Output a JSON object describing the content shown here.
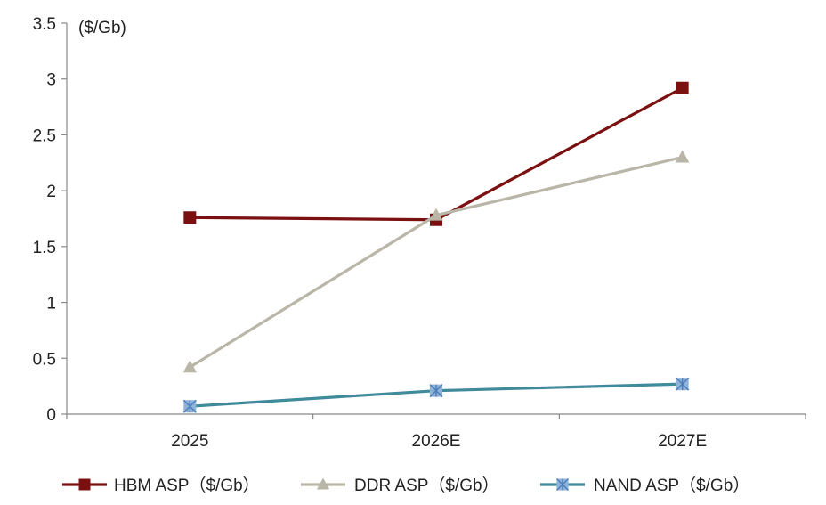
{
  "chart_data": {
    "type": "line",
    "categories": [
      "2025",
      "2026E",
      "2027E"
    ],
    "ylim": [
      0,
      3.5
    ],
    "yticks": [
      "0",
      "0.5",
      "1",
      "1.5",
      "2",
      "2.5",
      "3",
      "3.5"
    ],
    "ylabel": "($/Gb)",
    "grid": false,
    "legend_position": "bottom",
    "series": [
      {
        "name": "HBM ASP（$/Gb）",
        "values": [
          1.76,
          1.74,
          2.92
        ],
        "color": "#7B1010",
        "marker": "square"
      },
      {
        "name": "DDR ASP（$/Gb）",
        "values": [
          0.42,
          1.78,
          2.3
        ],
        "color": "#B9B6A7",
        "marker": "triangle"
      },
      {
        "name": "NAND ASP（$/Gb）",
        "values": [
          0.07,
          0.21,
          0.27
        ],
        "color": "#3F8A9B",
        "marker": "star",
        "marker_color": "#8FB2D8"
      }
    ]
  }
}
